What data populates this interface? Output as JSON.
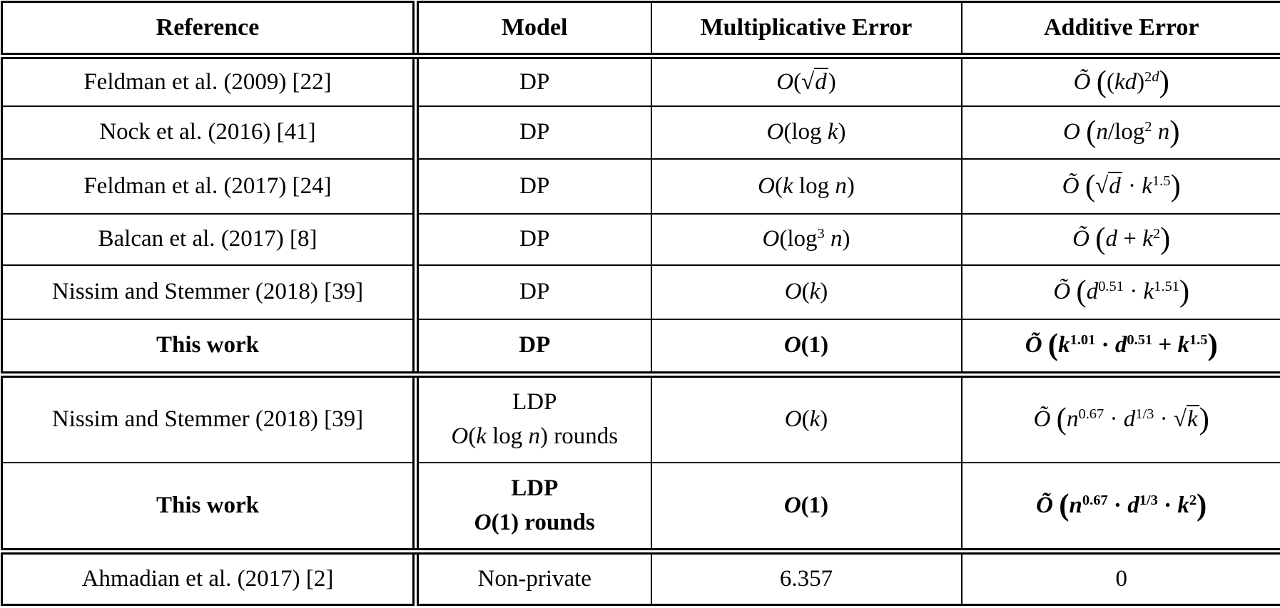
{
  "table": {
    "headers": {
      "reference": "Reference",
      "model": "Model",
      "multiplicative_error": "Multiplicative Error",
      "additive_error": "Additive Error"
    },
    "rows": [
      {
        "reference": "Feldman et al. (2009) [22]",
        "model_html": "DP",
        "mult_html": "<i>O</i>(√<span class=\"ov\"><i>d</i></span>)",
        "add_html": "<i>Õ</i> <span class=\"bp\">(</span>(<i>kd</i>)<sup>2<i>d</i></sup><span class=\"bp\">)</span>"
      },
      {
        "reference": "Nock et al. (2016) [41]",
        "model_html": "DP",
        "mult_html": "<i>O</i>(log <i>k</i>)",
        "add_html": "<i>O</i> <span class=\"bp\">(</span><i>n</i>/log<sup>2</sup> <i>n</i><span class=\"bp\">)</span>"
      },
      {
        "reference": "Feldman et al. (2017) [24]",
        "model_html": "DP",
        "mult_html": "<i>O</i>(<i>k</i> log <i>n</i>)",
        "add_html": "<i>Õ</i> <span class=\"bp\">(</span>√<span class=\"ov\"><i>d</i></span> · <i>k</i><sup>1.5</sup><span class=\"bp\">)</span>"
      },
      {
        "reference": "Balcan et al. (2017) [8]",
        "model_html": "DP",
        "mult_html": "<i>O</i>(log<sup>3</sup> <i>n</i>)",
        "add_html": "<i>Õ</i> <span class=\"bp\">(</span><i>d</i> + <i>k</i><sup>2</sup><span class=\"bp\">)</span>"
      },
      {
        "reference": "Nissim and Stemmer (2018) [39]",
        "model_html": "DP",
        "mult_html": "<i>O</i>(<i>k</i>)",
        "add_html": "<i>Õ</i> <span class=\"bp\">(</span><i>d</i><sup>0.51</sup> · <i>k</i><sup>1.51</sup><span class=\"bp\">)</span>"
      },
      {
        "reference": "This work",
        "model_html": "DP",
        "mult_html": "<i>O</i>(1)",
        "add_html": "<i>Õ</i> <span class=\"bp\">(</span><i>k</i><sup>1.01</sup> · <i>d</i><sup>0.51</sup> + <i>k</i><sup>1.5</sup><span class=\"bp\">)</span>"
      },
      {
        "reference": "Nissim and Stemmer (2018) [39]",
        "model_html": "<span class=\"twoline\">LDP<br><i>O</i>(<i>k</i> log <i>n</i>) rounds</span>",
        "mult_html": "<i>O</i>(<i>k</i>)",
        "add_html": "<i>Õ</i> <span class=\"bp\">(</span><i>n</i><sup>0.67</sup> · <i>d</i><sup>1/3</sup> · √<span class=\"ov\"><i>k</i></span><span class=\"bp\">)</span>"
      },
      {
        "reference": "This work",
        "model_html": "<span class=\"twoline\">LDP<br><i>O</i>(1) rounds</span>",
        "mult_html": "<i>O</i>(1)",
        "add_html": "<i>Õ</i> <span class=\"bp\">(</span><i>n</i><sup>0.67</sup> · <i>d</i><sup>1/3</sup> · <i>k</i><sup>2</sup><span class=\"bp\">)</span>"
      },
      {
        "reference": "Ahmadian et al. (2017) [2]",
        "model_html": "Non-private",
        "mult_html": "6.357",
        "add_html": "0"
      }
    ]
  }
}
